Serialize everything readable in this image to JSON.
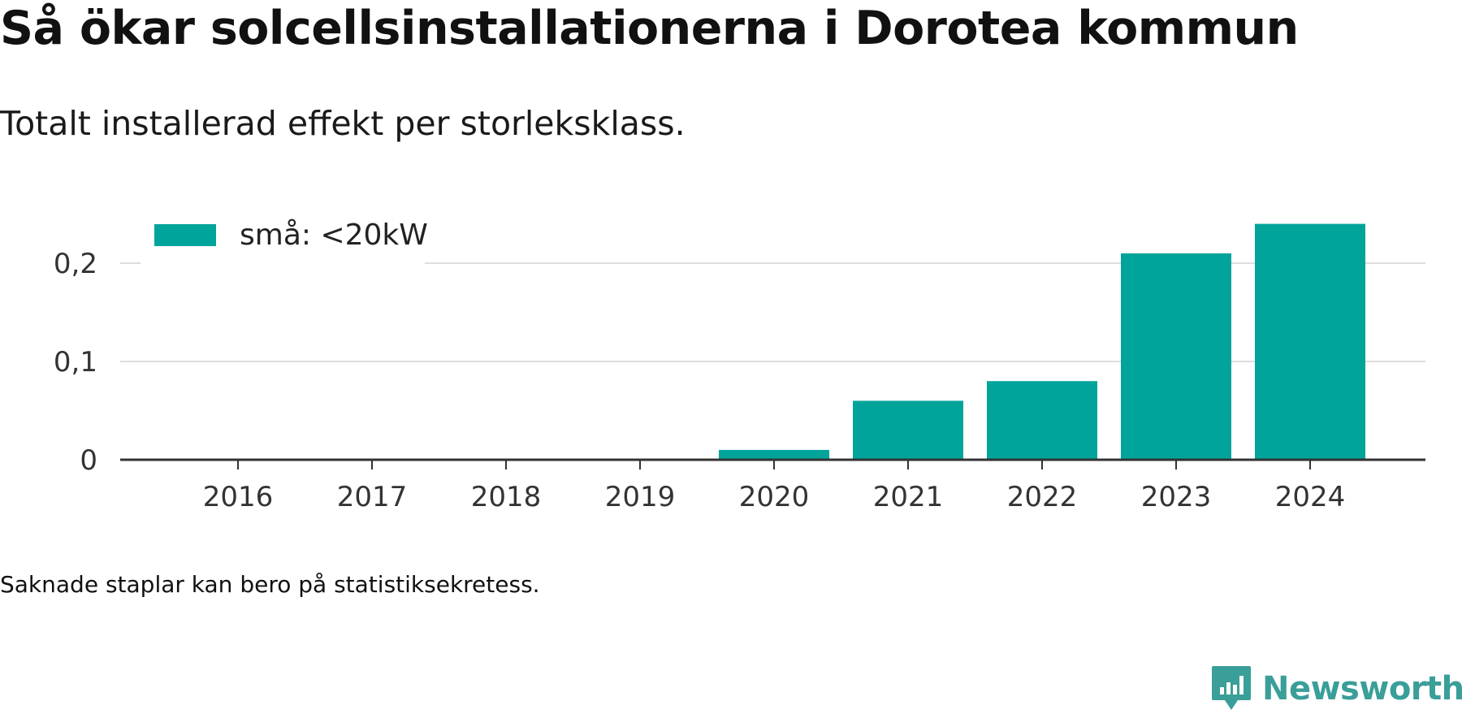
{
  "title": "Så ökar solcellsinstallationerna i Dorotea kommun",
  "subtitle": "Totalt installerad effekt per storleksklass.",
  "footnote": "Saknade staplar kan bero på statistiksekretess.",
  "brand": {
    "name": "Newsworthy",
    "color": "#3a9e99",
    "icon": "newsworthy-logo-icon"
  },
  "chart_data": {
    "type": "bar",
    "categories": [
      "2016",
      "2017",
      "2018",
      "2019",
      "2020",
      "2021",
      "2022",
      "2023",
      "2024"
    ],
    "series": [
      {
        "name": "små: <20kW",
        "color": "#00a49a",
        "values": [
          null,
          null,
          null,
          null,
          0.01,
          0.06,
          0.08,
          0.21,
          0.24
        ]
      }
    ],
    "yticks": [
      {
        "value": 0,
        "label": "0"
      },
      {
        "value": 0.1,
        "label": "0,1"
      },
      {
        "value": 0.2,
        "label": "0,2"
      }
    ],
    "ylim": [
      0,
      0.24
    ],
    "grid": true,
    "legend_position": "top-left"
  }
}
